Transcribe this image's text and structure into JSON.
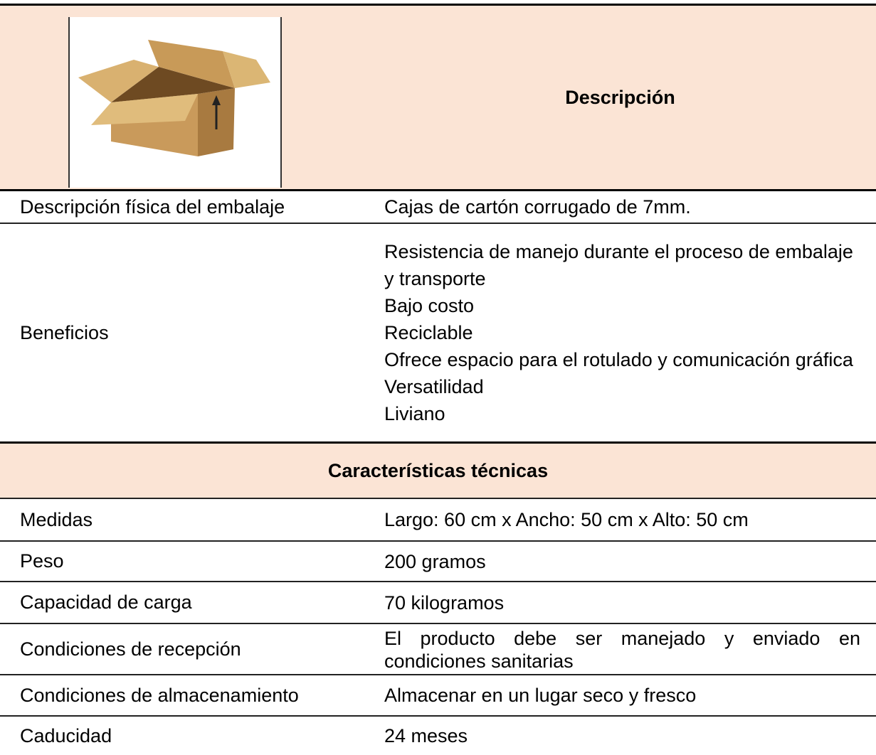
{
  "header": {
    "title": "Descripción"
  },
  "rows": [
    {
      "label": "Descripción física del embalaje",
      "value": "Cajas de cartón corrugado de 7mm."
    },
    {
      "label": "Beneficios",
      "items": [
        "Resistencia de manejo durante el proceso de embalaje y transporte",
        "Bajo costo",
        "Reciclable",
        "Ofrece espacio para el rotulado y comunicación  gráfica",
        "Versatilidad",
        "Liviano"
      ]
    }
  ],
  "section": {
    "title": "Características técnicas"
  },
  "technical": [
    {
      "label": "Medidas",
      "value": "Largo: 60 cm x Ancho: 50 cm x Alto: 50 cm"
    },
    {
      "label": "Peso",
      "value": "200 gramos"
    },
    {
      "label": "Capacidad de carga",
      "value": "70 kilogramos"
    },
    {
      "label": "Condiciones de recepción",
      "value": "El producto debe ser manejado y enviado en condiciones sanitarias"
    },
    {
      "label": "Condiciones de almacenamiento",
      "value": "Almacenar en un lugar seco y fresco"
    },
    {
      "label": "Caducidad",
      "value": "24 meses"
    }
  ]
}
